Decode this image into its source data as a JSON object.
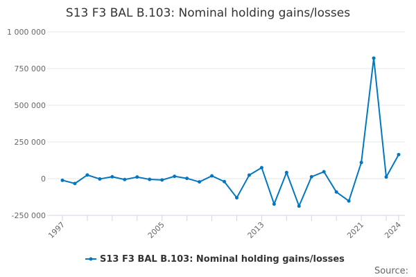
{
  "chart_data": {
    "type": "line",
    "title": "S13 F3 BAL B.103: Nominal holding gains/losses",
    "xlabel": "",
    "ylabel": "",
    "x": [
      1997,
      1998,
      1999,
      2000,
      2001,
      2002,
      2003,
      2004,
      2005,
      2006,
      2007,
      2008,
      2009,
      2010,
      2011,
      2012,
      2013,
      2014,
      2015,
      2016,
      2017,
      2018,
      2019,
      2020,
      2021,
      2022,
      2023,
      2024
    ],
    "series": [
      {
        "name": "S13 F3 BAL B.103: Nominal holding gains/losses",
        "color": "#0077c0",
        "values": [
          -11000,
          -33000,
          25000,
          -2000,
          13000,
          -6000,
          11000,
          -5000,
          -9000,
          16000,
          2000,
          -22000,
          19000,
          -20000,
          -130000,
          24000,
          75000,
          -173000,
          42000,
          -187000,
          13000,
          47000,
          -91000,
          -152000,
          110000,
          821000,
          11000,
          164000
        ]
      }
    ],
    "ylim": [
      -250000,
      1000000
    ],
    "yticks": [
      -250000,
      0,
      250000,
      500000,
      750000,
      1000000
    ],
    "ytick_labels": [
      "-250 000",
      "0",
      "250 000",
      "500 000",
      "750 000",
      "1 000 000"
    ],
    "xtick_labels": [
      "1997",
      "2005",
      "2013",
      "2021",
      "2024"
    ],
    "grid": true,
    "legend": "bottom-center",
    "source_label": "Source:"
  }
}
